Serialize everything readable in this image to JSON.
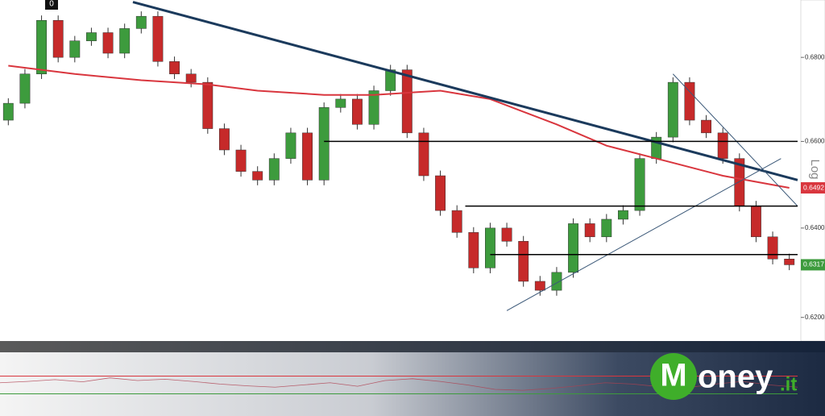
{
  "chart_data": [
    {
      "type": "candlestick",
      "badge": "0",
      "scale_label": "Log",
      "log": true,
      "ylim": [
        0.615,
        0.694
      ],
      "yticks": [
        {
          "value": 0.62,
          "label": "0.6200"
        },
        {
          "value": 0.64,
          "label": "0.6400"
        },
        {
          "value": 0.66,
          "label": "0.6600"
        },
        {
          "value": 0.68,
          "label": "0.6800"
        }
      ],
      "up_color": "#3d9b3d",
      "down_color": "#c62a2a",
      "open": [
        0.665,
        0.669,
        0.676,
        0.689,
        0.68,
        0.684,
        0.686,
        0.681,
        0.687,
        0.69,
        0.679,
        0.676,
        0.674,
        0.663,
        0.658,
        0.653,
        0.651,
        0.656,
        0.662,
        0.651,
        0.668,
        0.67,
        0.664,
        0.672,
        0.677,
        0.662,
        0.652,
        0.644,
        0.639,
        0.631,
        0.64,
        0.637,
        0.628,
        0.626,
        0.63,
        0.641,
        0.638,
        0.642,
        0.644,
        0.656,
        0.661,
        0.674,
        0.665,
        0.662,
        0.656,
        0.645,
        0.638,
        0.633
      ],
      "high": [
        0.6702,
        0.6772,
        0.6902,
        0.6902,
        0.6852,
        0.6872,
        0.6872,
        0.6882,
        0.6912,
        0.6912,
        0.6802,
        0.6772,
        0.6752,
        0.6642,
        0.6592,
        0.6542,
        0.6572,
        0.6632,
        0.6632,
        0.6692,
        0.6712,
        0.6712,
        0.6732,
        0.6782,
        0.6782,
        0.6632,
        0.6532,
        0.6452,
        0.6402,
        0.6412,
        0.6412,
        0.6382,
        0.6292,
        0.6312,
        0.6422,
        0.6422,
        0.6432,
        0.6452,
        0.6572,
        0.6622,
        0.6752,
        0.6752,
        0.6662,
        0.6632,
        0.6572,
        0.6462,
        0.6392,
        0.6342
      ],
      "low": [
        0.6638,
        0.6678,
        0.6748,
        0.6788,
        0.6788,
        0.6828,
        0.6798,
        0.6798,
        0.6858,
        0.6778,
        0.6748,
        0.6728,
        0.6618,
        0.6568,
        0.6518,
        0.6498,
        0.6498,
        0.6548,
        0.6498,
        0.6498,
        0.6668,
        0.6628,
        0.6628,
        0.6708,
        0.6608,
        0.6508,
        0.6428,
        0.6378,
        0.6298,
        0.6298,
        0.6358,
        0.6268,
        0.6248,
        0.6248,
        0.6288,
        0.6368,
        0.6368,
        0.6408,
        0.6428,
        0.6548,
        0.6598,
        0.6638,
        0.6608,
        0.6548,
        0.6438,
        0.6368,
        0.6318,
        0.6305
      ],
      "close": [
        0.669,
        0.676,
        0.689,
        0.68,
        0.684,
        0.686,
        0.681,
        0.687,
        0.69,
        0.679,
        0.676,
        0.674,
        0.663,
        0.658,
        0.653,
        0.651,
        0.656,
        0.662,
        0.651,
        0.668,
        0.67,
        0.664,
        0.672,
        0.677,
        0.662,
        0.652,
        0.644,
        0.639,
        0.631,
        0.64,
        0.637,
        0.628,
        0.626,
        0.63,
        0.641,
        0.638,
        0.642,
        0.644,
        0.656,
        0.661,
        0.674,
        0.665,
        0.662,
        0.656,
        0.645,
        0.638,
        0.633,
        0.6317
      ],
      "moving_average": {
        "color": "#d9363e",
        "x": [
          1,
          5,
          9,
          13,
          16,
          20,
          23,
          27,
          30,
          34,
          37,
          41,
          44,
          48
        ],
        "values": [
          0.678,
          0.676,
          0.6745,
          0.6735,
          0.672,
          0.671,
          0.671,
          0.672,
          0.67,
          0.664,
          0.659,
          0.655,
          0.652,
          0.6492
        ]
      },
      "trend_lines": [
        {
          "color": "#1b3a5c",
          "width": 3,
          "x": [
            8.5,
            48.5
          ],
          "y": [
            0.6935,
            0.651
          ]
        },
        {
          "color": "#3b5878",
          "width": 1,
          "x": [
            31,
            47.5
          ],
          "y": [
            0.6215,
            0.656
          ]
        },
        {
          "color": "#3b5878",
          "width": 1,
          "x": [
            41,
            48.5
          ],
          "y": [
            0.676,
            0.645
          ]
        },
        {
          "color": "#000000",
          "width": 1.5,
          "x": [
            20,
            48.5
          ],
          "y": [
            0.66,
            0.66
          ]
        },
        {
          "color": "#000000",
          "width": 1.5,
          "x": [
            28.5,
            48.5
          ],
          "y": [
            0.645,
            0.645
          ]
        },
        {
          "color": "#000000",
          "width": 1.5,
          "x": [
            30,
            48.5
          ],
          "y": [
            0.634,
            0.634
          ]
        }
      ],
      "price_tags": [
        {
          "value": 0.6492,
          "color": "#d9363e"
        },
        {
          "value": 0.6317,
          "color": "#3d9b3d"
        }
      ]
    },
    {
      "type": "line",
      "ylim": [
        0,
        100
      ],
      "levels": [
        {
          "value": 70,
          "color": "#d9363e"
        },
        {
          "value": 30,
          "color": "#3d9b3d"
        }
      ],
      "color": "#b04050",
      "values": [
        55,
        58,
        62,
        57,
        66,
        60,
        63,
        58,
        52,
        48,
        45,
        50,
        55,
        47,
        60,
        64,
        58,
        50,
        40,
        38,
        42,
        48,
        55,
        52,
        46,
        44,
        52,
        58,
        50,
        45
      ],
      "logo": {
        "initial": "M",
        "rest": "oney",
        "tld": ".it"
      }
    }
  ]
}
